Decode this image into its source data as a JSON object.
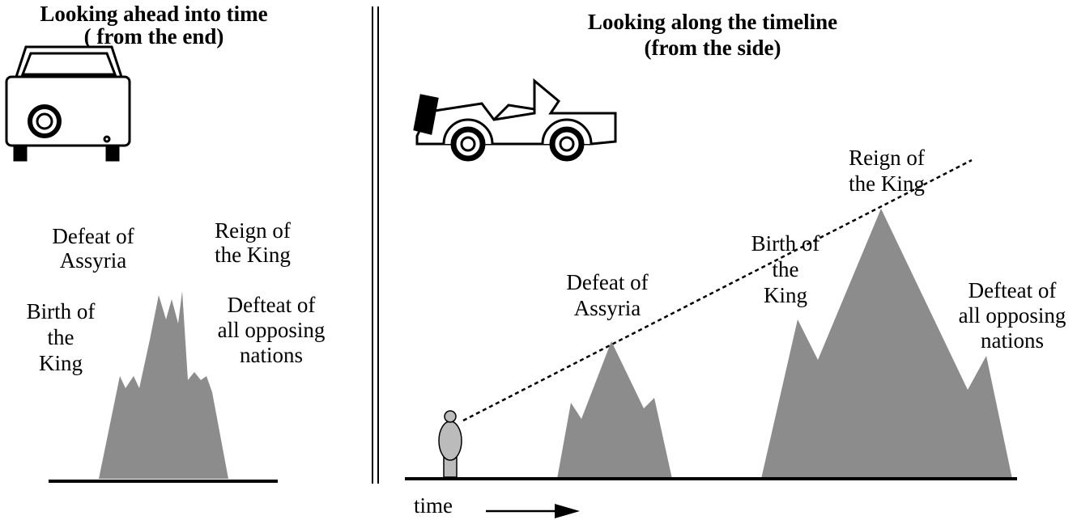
{
  "left_panel": {
    "title": [
      "Looking ahead into time",
      "( from the end)"
    ],
    "labels": [
      [
        "Defeat of",
        "Assyria"
      ],
      [
        "Reign of",
        "the King"
      ],
      [
        "Birth of",
        "the",
        "King"
      ],
      [
        "Defteat of",
        "all opposing",
        "nations"
      ]
    ]
  },
  "right_panel": {
    "title": [
      "Looking along the timeline",
      "(from the side)"
    ],
    "labels": [
      [
        "Reign of",
        "the King"
      ],
      [
        "Birth of",
        "the",
        "King"
      ],
      [
        "Defeat of",
        "Assyria"
      ],
      [
        "Defteat of",
        "all opposing",
        "nations"
      ]
    ],
    "axis_label": "time"
  }
}
